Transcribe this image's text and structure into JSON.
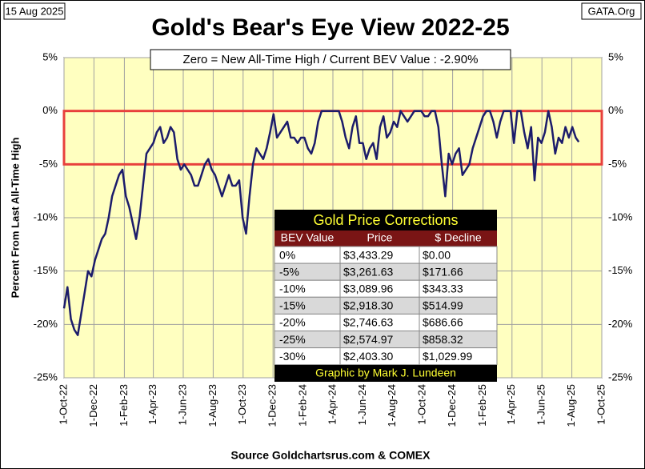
{
  "chart_data": {
    "type": "line",
    "title": "Gold's Bear's Eye View 2022-25",
    "date_label": "15 Aug 2025",
    "site_label": "GATA.Org",
    "annotation": "Zero = New All-Time High / Current  BEV Value : -2.90%",
    "source": "Source Goldchartsrus.com & COMEX",
    "ylabel": "Percent  From Last  All-Time  High",
    "ylim": [
      -25,
      5
    ],
    "yticks": [
      {
        "value": 5,
        "label": "5%"
      },
      {
        "value": 0,
        "label": "0%"
      },
      {
        "value": -5,
        "label": "-5%"
      },
      {
        "value": -10,
        "label": "-10%"
      },
      {
        "value": -15,
        "label": "-15%"
      },
      {
        "value": -20,
        "label": "-20%"
      },
      {
        "value": -25,
        "label": "-25%"
      }
    ],
    "xlim": [
      "2022-10-01",
      "2025-10-01"
    ],
    "xticks": [
      {
        "value": "2022-10-01",
        "label": "1-Oct-22"
      },
      {
        "value": "2022-12-01",
        "label": "1-Dec-22"
      },
      {
        "value": "2023-02-01",
        "label": "1-Feb-23"
      },
      {
        "value": "2023-04-01",
        "label": "1-Apr-23"
      },
      {
        "value": "2023-06-01",
        "label": "1-Jun-23"
      },
      {
        "value": "2023-08-01",
        "label": "1-Aug-23"
      },
      {
        "value": "2023-10-01",
        "label": "1-Oct-23"
      },
      {
        "value": "2023-12-01",
        "label": "1-Dec-23"
      },
      {
        "value": "2024-02-01",
        "label": "1-Feb-24"
      },
      {
        "value": "2024-04-01",
        "label": "1-Apr-24"
      },
      {
        "value": "2024-06-01",
        "label": "1-Jun-24"
      },
      {
        "value": "2024-08-01",
        "label": "1-Aug-24"
      },
      {
        "value": "2024-10-01",
        "label": "1-Oct-24"
      },
      {
        "value": "2024-12-01",
        "label": "1-Dec-24"
      },
      {
        "value": "2025-02-01",
        "label": "1-Feb-25"
      },
      {
        "value": "2025-04-01",
        "label": "1-Apr-25"
      },
      {
        "value": "2025-06-01",
        "label": "1-Jun-25"
      },
      {
        "value": "2025-08-01",
        "label": "1-Aug-25"
      },
      {
        "value": "2025-10-01",
        "label": "1-Oct-25"
      }
    ],
    "grid": true,
    "highlight_band": [
      -5,
      0
    ],
    "highlight_color": "#e8403c",
    "color": "#1c1c6b",
    "x": [
      "2022-10-01",
      "2022-10-08",
      "2022-10-15",
      "2022-10-22",
      "2022-10-29",
      "2022-11-05",
      "2022-11-12",
      "2022-11-19",
      "2022-11-26",
      "2022-12-03",
      "2022-12-10",
      "2022-12-17",
      "2022-12-24",
      "2022-12-31",
      "2023-01-07",
      "2023-01-14",
      "2023-01-21",
      "2023-01-28",
      "2023-02-04",
      "2023-02-11",
      "2023-02-18",
      "2023-02-25",
      "2023-03-04",
      "2023-03-11",
      "2023-03-18",
      "2023-03-25",
      "2023-04-01",
      "2023-04-08",
      "2023-04-15",
      "2023-04-22",
      "2023-04-29",
      "2023-05-06",
      "2023-05-13",
      "2023-05-20",
      "2023-05-27",
      "2023-06-03",
      "2023-06-10",
      "2023-06-17",
      "2023-06-24",
      "2023-07-01",
      "2023-07-08",
      "2023-07-15",
      "2023-07-22",
      "2023-07-29",
      "2023-08-05",
      "2023-08-12",
      "2023-08-19",
      "2023-08-26",
      "2023-09-02",
      "2023-09-09",
      "2023-09-16",
      "2023-09-23",
      "2023-09-30",
      "2023-10-07",
      "2023-10-14",
      "2023-10-21",
      "2023-10-28",
      "2023-11-04",
      "2023-11-11",
      "2023-11-18",
      "2023-11-25",
      "2023-12-02",
      "2023-12-09",
      "2023-12-16",
      "2023-12-23",
      "2023-12-30",
      "2024-01-06",
      "2024-01-13",
      "2024-01-20",
      "2024-01-27",
      "2024-02-03",
      "2024-02-10",
      "2024-02-17",
      "2024-02-24",
      "2024-03-02",
      "2024-03-09",
      "2024-03-16",
      "2024-03-23",
      "2024-03-30",
      "2024-04-06",
      "2024-04-13",
      "2024-04-20",
      "2024-04-27",
      "2024-05-04",
      "2024-05-11",
      "2024-05-18",
      "2024-05-25",
      "2024-06-01",
      "2024-06-08",
      "2024-06-15",
      "2024-06-22",
      "2024-06-29",
      "2024-07-06",
      "2024-07-13",
      "2024-07-20",
      "2024-07-27",
      "2024-08-03",
      "2024-08-10",
      "2024-08-17",
      "2024-08-24",
      "2024-08-31",
      "2024-09-07",
      "2024-09-14",
      "2024-09-21",
      "2024-09-28",
      "2024-10-05",
      "2024-10-12",
      "2024-10-19",
      "2024-10-26",
      "2024-11-02",
      "2024-11-09",
      "2024-11-16",
      "2024-11-23",
      "2024-11-30",
      "2024-12-07",
      "2024-12-14",
      "2024-12-21",
      "2024-12-28",
      "2025-01-04",
      "2025-01-11",
      "2025-01-18",
      "2025-01-25",
      "2025-02-01",
      "2025-02-08",
      "2025-02-15",
      "2025-02-22",
      "2025-03-01",
      "2025-03-08",
      "2025-03-15",
      "2025-03-22",
      "2025-03-29",
      "2025-04-05",
      "2025-04-12",
      "2025-04-19",
      "2025-04-26",
      "2025-05-03",
      "2025-05-10",
      "2025-05-17",
      "2025-05-24",
      "2025-05-31",
      "2025-06-07",
      "2025-06-14",
      "2025-06-21",
      "2025-06-28",
      "2025-07-05",
      "2025-07-12",
      "2025-07-19",
      "2025-07-26",
      "2025-08-02",
      "2025-08-09",
      "2025-08-15"
    ],
    "values": [
      -18.5,
      -16.5,
      -19.5,
      -20.5,
      -21,
      -19,
      -17,
      -15,
      -15.5,
      -14,
      -13,
      -12,
      -11.5,
      -10,
      -8,
      -7,
      -6,
      -5.5,
      -8,
      -9,
      -10.5,
      -12,
      -10,
      -7,
      -4,
      -3.5,
      -3,
      -2,
      -1.5,
      -3,
      -2.5,
      -1.5,
      -2,
      -4.5,
      -5.5,
      -5,
      -5.5,
      -6,
      -7,
      -7,
      -6,
      -5,
      -4.5,
      -5.5,
      -6,
      -7,
      -8,
      -7,
      -6,
      -7,
      -7,
      -6.5,
      -10,
      -11.5,
      -8,
      -5,
      -3.5,
      -4,
      -4.5,
      -3.5,
      -2,
      -0.3,
      -2.5,
      -2,
      -1.5,
      -1,
      -2.5,
      -2.5,
      -3,
      -2.5,
      -2.5,
      -3.5,
      -4,
      -3,
      -1,
      0,
      0,
      0,
      0,
      0,
      0,
      -1,
      -2.5,
      -3.5,
      -1.5,
      -0.5,
      -3,
      -3,
      -4.5,
      -3.5,
      -3,
      -4.5,
      -1.5,
      -0.5,
      -2.5,
      -2,
      -1,
      -1.5,
      0,
      -0.5,
      -1,
      -0.5,
      0,
      0,
      0,
      -0.5,
      -0.5,
      0,
      0,
      -1.5,
      -5,
      -8,
      -4,
      -5,
      -4,
      -3.5,
      -6,
      -5.5,
      -5,
      -3.5,
      -2.5,
      -1.5,
      -0.5,
      0,
      0,
      -1,
      -2.5,
      -1,
      0,
      0,
      0,
      -3,
      0,
      0,
      -2,
      -3.5,
      -1.5,
      -6.5,
      -2.5,
      -3,
      -2,
      0,
      -1.5,
      -4,
      -2.5,
      -3,
      -1.5,
      -2.5,
      -1.5,
      -2.5,
      -2.9
    ]
  },
  "table": {
    "title": "Gold Price Corrections",
    "header": [
      "BEV Value",
      "Price",
      "$ Decline"
    ],
    "rows": [
      [
        "0%",
        "$3,433.29",
        "$0.00"
      ],
      [
        "-5%",
        "$3,261.63",
        "$171.66"
      ],
      [
        "-10%",
        "$3,089.96",
        "$343.33"
      ],
      [
        "-15%",
        "$2,918.30",
        "$514.99"
      ],
      [
        "-20%",
        "$2,746.63",
        "$686.66"
      ],
      [
        "-25%",
        "$2,574.97",
        "$858.32"
      ],
      [
        "-30%",
        "$2,403.30",
        "$1,029.99"
      ]
    ],
    "footer": "Graphic by Mark J. Lundeen"
  }
}
